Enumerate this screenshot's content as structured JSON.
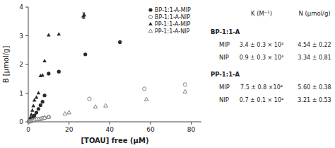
{
  "chart_data": {
    "type": "scatter",
    "xlabel": "[TOAU] free (μM)",
    "ylabel": "B [μmol/g]",
    "xlim": [
      0,
      85
    ],
    "ylim": [
      0,
      4.0
    ],
    "xticks": [
      0,
      20,
      40,
      60,
      80
    ],
    "yticks": [
      0,
      1,
      2,
      3,
      4
    ],
    "legend": "upper right",
    "series": [
      {
        "name": "BP-1:1-A-MIP",
        "color": "#2a2a2a",
        "marker": "circle",
        "x": [
          0.3,
          0.5,
          0.8,
          1.0,
          1.5,
          2.0,
          2.5,
          3.0,
          4.0,
          5.0,
          6.0,
          7.0,
          8.0,
          10.0,
          15.0,
          28.0,
          45.0
        ],
        "values": [
          0.02,
          0.03,
          0.05,
          0.07,
          0.1,
          0.13,
          0.18,
          0.22,
          0.32,
          0.45,
          0.58,
          0.7,
          0.92,
          1.68,
          1.75,
          2.35,
          2.78
        ]
      },
      {
        "name": "BP-1:1-A-NIP",
        "color": "#808080",
        "marker": "circle-open",
        "x": [
          0.3,
          0.5,
          0.8,
          1.0,
          1.5,
          2.0,
          2.5,
          3.0,
          4.0,
          5.0,
          6.0,
          7.0,
          8.0,
          10.0,
          30.0,
          57.0,
          77.0
        ],
        "values": [
          0.01,
          0.01,
          0.02,
          0.02,
          0.03,
          0.04,
          0.05,
          0.06,
          0.08,
          0.09,
          0.1,
          0.12,
          0.14,
          0.17,
          0.8,
          1.15,
          1.3
        ]
      },
      {
        "name": "PP-1:1-A-MIP",
        "color": "#2a2a2a",
        "marker": "triangle",
        "x": [
          0.3,
          0.5,
          0.8,
          1.0,
          1.5,
          2.0,
          2.5,
          3.0,
          4.0,
          5.0,
          6.0,
          7.0,
          8.0,
          10.0,
          15.0,
          27.0,
          27.5
        ],
        "values": [
          0.03,
          0.06,
          0.1,
          0.15,
          0.25,
          0.4,
          0.55,
          0.75,
          0.85,
          1.0,
          1.6,
          1.62,
          2.12,
          3.02,
          3.05,
          3.68,
          3.72
        ],
        "error_bar": {
          "x": 27.2,
          "y": 3.7,
          "error": 0.1
        }
      },
      {
        "name": "PP-1:1-A-NIP",
        "color": "#808080",
        "marker": "triangle-open",
        "x": [
          0.3,
          0.5,
          0.8,
          1.0,
          1.5,
          2.0,
          2.5,
          3.0,
          4.0,
          5.0,
          6.0,
          7.0,
          8.0,
          10.0,
          18.0,
          20.0,
          33.0,
          38.0,
          58.0,
          77.0
        ],
        "values": [
          0.01,
          0.01,
          0.02,
          0.02,
          0.03,
          0.04,
          0.05,
          0.06,
          0.08,
          0.09,
          0.1,
          0.12,
          0.14,
          0.17,
          0.28,
          0.32,
          0.52,
          0.56,
          0.78,
          1.05
        ]
      }
    ],
    "annotations": [
      "K (M⁻¹)",
      "N (μmol/g)",
      "BP-1:1-A",
      "MIP",
      "3.4 ± 0.3 × 10⁴",
      "4.54 ± 0.22",
      "NIP",
      "0.9 ± 0.3 × 10⁴",
      "3.34 ± 0.81",
      "PP-1:1-A",
      "MIP",
      "7.5 ± 0.8 ×10⁴",
      "5.60 ± 0.38",
      "NIP",
      "0.7 ± 0.1 × 10⁴",
      "3.21 ± 0.53"
    ]
  }
}
